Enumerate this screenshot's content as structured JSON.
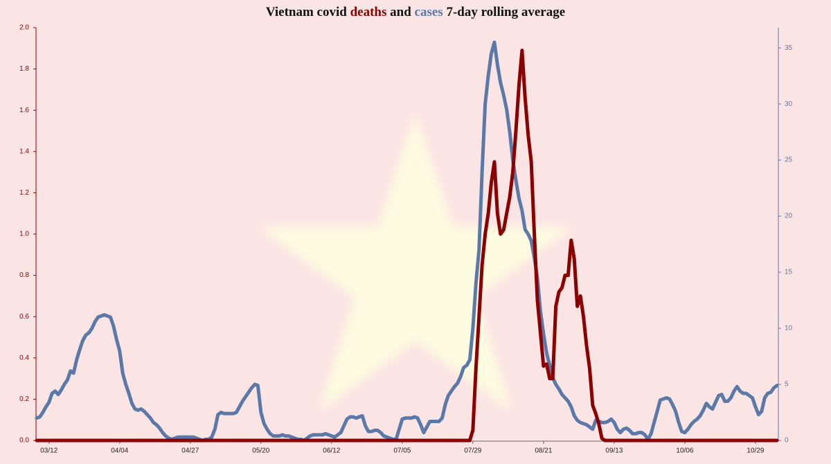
{
  "chart_data": {
    "type": "line",
    "title_parts": [
      "Vietnam covid",
      "deaths",
      "and",
      "cases",
      "7-day rolling average"
    ],
    "categories": [
      null,
      null,
      null,
      null,
      "03/12",
      null,
      null,
      null,
      null,
      null,
      null,
      null,
      null,
      null,
      null,
      null,
      null,
      null,
      null,
      null,
      null,
      null,
      null,
      null,
      null,
      null,
      null,
      "04/04",
      null,
      null,
      null,
      null,
      null,
      null,
      null,
      null,
      null,
      null,
      null,
      null,
      null,
      null,
      null,
      null,
      null,
      null,
      null,
      null,
      null,
      null,
      "04/27",
      null,
      null,
      null,
      null,
      null,
      null,
      null,
      null,
      null,
      null,
      null,
      null,
      null,
      null,
      null,
      null,
      null,
      null,
      null,
      null,
      null,
      null,
      "05/20",
      null,
      null,
      null,
      null,
      null,
      null,
      null,
      null,
      null,
      null,
      null,
      null,
      null,
      null,
      null,
      null,
      null,
      null,
      null,
      null,
      null,
      null,
      "06/12",
      null,
      null,
      null,
      null,
      null,
      null,
      null,
      null,
      null,
      null,
      null,
      null,
      null,
      null,
      null,
      null,
      null,
      null,
      null,
      null,
      null,
      null,
      "07/05",
      null,
      null,
      null,
      null,
      null,
      null,
      null,
      null,
      null,
      null,
      null,
      null,
      null,
      null,
      null,
      null,
      null,
      null,
      null,
      null,
      null,
      null,
      "07/29",
      null,
      null,
      null,
      null,
      null,
      null,
      null,
      null,
      null,
      null,
      null,
      null,
      null,
      null,
      null,
      null,
      null,
      null,
      null,
      null,
      null,
      null,
      "08/21",
      null,
      null,
      null,
      null,
      null,
      null,
      null,
      null,
      null,
      null,
      null,
      null,
      null,
      null,
      null,
      null,
      null,
      null,
      null,
      null,
      null,
      null,
      "09/13",
      null,
      null,
      null,
      null,
      null,
      null,
      null,
      null,
      null,
      null,
      null,
      null,
      null,
      null,
      null,
      null,
      null,
      null,
      null,
      null,
      null,
      null,
      "10/06",
      null,
      null,
      null,
      null,
      null,
      null,
      null,
      null,
      null,
      null,
      null,
      null,
      null,
      null,
      null,
      null,
      null,
      null,
      null,
      null,
      null,
      null,
      "10/29",
      null,
      null,
      null,
      null,
      null,
      null,
      null
    ],
    "series": [
      {
        "name": "cases",
        "color": "#5b79a8",
        "axis": "y2",
        "values": [
          2.0,
          2.1,
          2.5,
          3.0,
          3.4,
          4.2,
          4.4,
          4.1,
          4.5,
          5.0,
          5.4,
          6.2,
          6.0,
          7.2,
          8.1,
          8.9,
          9.4,
          9.6,
          10.0,
          10.6,
          11.0,
          11.1,
          11.2,
          11.1,
          11.0,
          10.2,
          9.0,
          8.0,
          6.0,
          5.0,
          4.2,
          3.3,
          2.8,
          2.7,
          2.8,
          2.6,
          2.3,
          2.0,
          1.6,
          1.4,
          1.1,
          0.7,
          0.4,
          0.2,
          0.1,
          0.2,
          0.3,
          0.3,
          0.3,
          0.3,
          0.3,
          0.3,
          0.2,
          0.1,
          0.0,
          0.1,
          0.1,
          0.3,
          1.0,
          2.3,
          2.5,
          2.4,
          2.4,
          2.4,
          2.4,
          2.5,
          3.0,
          3.5,
          3.9,
          4.3,
          4.7,
          5.0,
          4.9,
          2.5,
          1.5,
          1.0,
          0.6,
          0.4,
          0.4,
          0.4,
          0.5,
          0.4,
          0.4,
          0.3,
          0.2,
          0.1,
          0.1,
          0.0,
          0.2,
          0.4,
          0.5,
          0.5,
          0.5,
          0.5,
          0.6,
          0.5,
          0.4,
          0.3,
          0.5,
          0.7,
          1.3,
          1.9,
          2.1,
          2.1,
          2.0,
          2.1,
          2.2,
          1.3,
          0.8,
          0.8,
          0.9,
          0.9,
          0.7,
          0.4,
          0.3,
          0.2,
          0.1,
          0.1,
          1.0,
          1.9,
          2.0,
          2.0,
          2.0,
          2.1,
          2.0,
          1.4,
          0.7,
          1.2,
          1.7,
          1.7,
          1.7,
          1.7,
          2.0,
          3.2,
          4.0,
          4.4,
          4.8,
          5.1,
          5.7,
          6.5,
          6.7,
          7.2,
          10,
          14,
          17,
          24,
          30,
          32.5,
          34.5,
          35.5,
          33.5,
          31.9,
          30.8,
          29.5,
          27.5,
          25,
          23.2,
          21.6,
          20.5,
          18.8,
          18.4,
          17.8,
          16.3,
          14.5,
          11.5,
          9.5,
          7.8,
          6.7,
          5.6,
          5.0,
          4.6,
          4.1,
          3.8,
          3.5,
          3.0,
          2.2,
          1.8,
          1.6,
          1.5,
          1.4,
          1.2,
          1.0,
          1.8,
          1.7,
          1.6,
          1.6,
          1.7,
          1.9,
          1.6,
          1.0,
          0.7,
          1.0,
          1.1,
          0.9,
          0.6,
          0.6,
          0.7,
          0.7,
          0.5,
          0.1,
          0.6,
          1.6,
          2.6,
          3.6,
          3.7,
          3.8,
          3.7,
          3.2,
          2.6,
          1.6,
          0.8,
          0.7,
          1.0,
          1.4,
          1.7,
          1.9,
          2.2,
          2.7,
          3.3,
          3.0,
          2.8,
          3.4,
          4.0,
          4.1,
          3.5,
          3.5,
          3.8,
          4.4,
          4.8,
          4.4,
          4.2,
          4.2,
          4.0,
          3.8,
          3.0,
          2.3,
          2.6,
          3.8,
          4.2,
          4.3,
          4.7,
          4.9
        ]
      },
      {
        "name": "deaths",
        "color": "#8b0000",
        "axis": "y",
        "values": [
          0,
          0,
          0,
          0,
          0,
          0,
          0,
          0,
          0,
          0,
          0,
          0,
          0,
          0,
          0,
          0,
          0,
          0,
          0,
          0,
          0,
          0,
          0,
          0,
          0,
          0,
          0,
          0,
          0,
          0,
          0,
          0,
          0,
          0,
          0,
          0,
          0,
          0,
          0,
          0,
          0,
          0,
          0,
          0,
          0,
          0,
          0,
          0,
          0,
          0,
          0,
          0,
          0,
          0,
          0,
          0,
          0,
          0,
          0,
          0,
          0,
          0,
          0,
          0,
          0,
          0,
          0,
          0,
          0,
          0,
          0,
          0,
          0,
          0,
          0,
          0,
          0,
          0,
          0,
          0,
          0,
          0,
          0,
          0,
          0,
          0,
          0,
          0,
          0,
          0,
          0,
          0,
          0,
          0,
          0,
          0,
          0,
          0,
          0,
          0,
          0,
          0,
          0,
          0,
          0,
          0,
          0,
          0,
          0,
          0,
          0,
          0,
          0,
          0,
          0,
          0,
          0,
          0,
          0,
          0,
          0,
          0,
          0,
          0,
          0,
          0,
          0,
          0,
          0,
          0,
          0,
          0,
          0,
          0,
          0,
          0,
          0,
          0,
          0,
          0,
          0,
          0,
          0.05,
          0.35,
          0.6,
          0.85,
          1.0,
          1.1,
          1.25,
          1.35,
          1.1,
          1.0,
          1.02,
          1.1,
          1.18,
          1.3,
          1.5,
          1.72,
          1.89,
          1.66,
          1.48,
          1.35,
          1.0,
          0.68,
          0.52,
          0.36,
          0.37,
          0.3,
          0.3,
          0.65,
          0.72,
          0.74,
          0.8,
          0.8,
          0.97,
          0.88,
          0.65,
          0.7,
          0.6,
          0.46,
          0.35,
          0.17,
          0.13,
          0.08,
          0.01,
          0,
          0,
          0,
          0,
          0,
          0,
          0,
          0,
          0,
          0,
          0,
          0,
          0,
          0,
          0,
          0,
          0,
          0,
          0,
          0,
          0,
          0,
          0,
          0,
          0,
          0,
          0,
          0,
          0,
          0,
          0,
          0,
          0,
          0,
          0,
          0,
          0,
          0,
          0,
          0,
          0,
          0,
          0,
          0,
          0,
          0,
          0,
          0,
          0,
          0,
          0,
          0,
          0,
          0,
          0,
          0,
          0
        ]
      }
    ],
    "ylim": [
      0,
      2.0
    ],
    "yticks": [
      {
        "value": 0,
        "label": "0.0"
      },
      {
        "value": 0.2,
        "label": "0.2"
      },
      {
        "value": 0.4,
        "label": "0.4"
      },
      {
        "value": 0.6,
        "label": "0.6"
      },
      {
        "value": 0.8,
        "label": "0.8"
      },
      {
        "value": 1.0,
        "label": "1.0"
      },
      {
        "value": 1.2,
        "label": "1.2"
      },
      {
        "value": 1.4,
        "label": "1.4"
      },
      {
        "value": 1.6,
        "label": "1.6"
      },
      {
        "value": 1.8,
        "label": "1.8"
      },
      {
        "value": 2.0,
        "label": "2.0"
      }
    ],
    "y2lim": [
      0,
      36.8
    ],
    "y2ticks": [
      0,
      5,
      10,
      15,
      20,
      25,
      30,
      35
    ],
    "grid": false
  }
}
